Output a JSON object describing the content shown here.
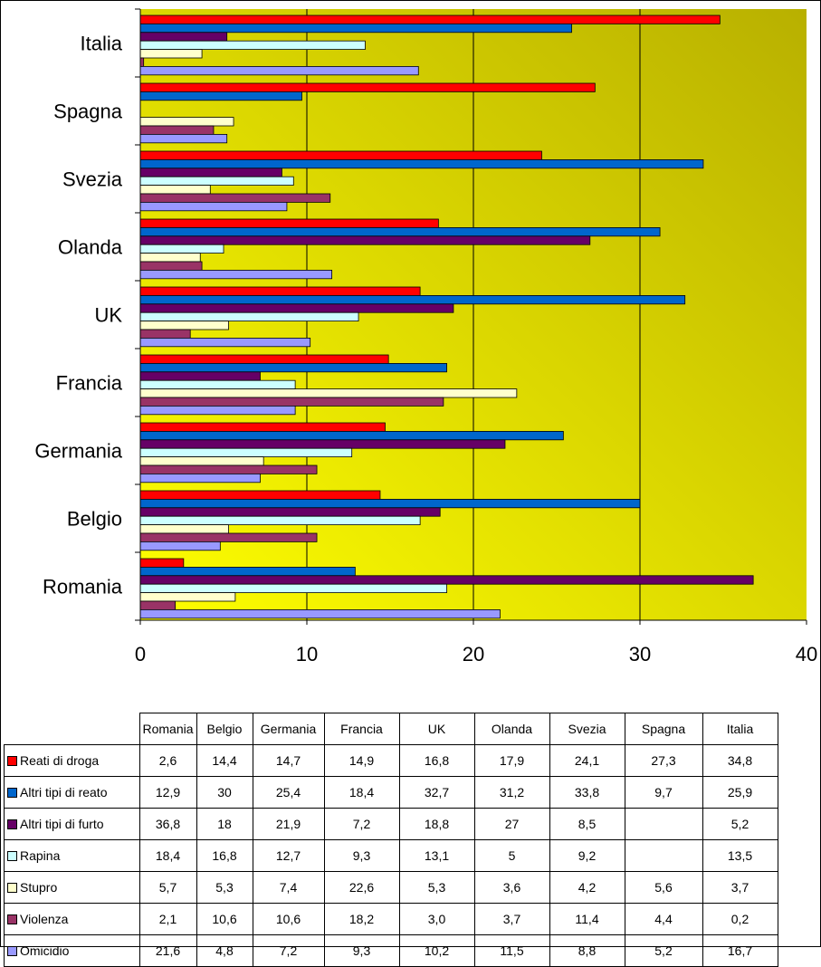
{
  "chart_data": {
    "type": "bar",
    "orientation": "horizontal",
    "categories": [
      "Romania",
      "Belgio",
      "Germania",
      "Francia",
      "UK",
      "Olanda",
      "Svezia",
      "Spagna",
      "Italia"
    ],
    "series": [
      {
        "name": "Reati di droga",
        "color": "#ff0000",
        "values": [
          2.6,
          14.4,
          14.7,
          14.9,
          16.8,
          17.9,
          24.1,
          27.3,
          34.8
        ],
        "display": [
          "2,6",
          "14,4",
          "14,7",
          "14,9",
          "16,8",
          "17,9",
          "24,1",
          "27,3",
          "34,8"
        ]
      },
      {
        "name": "Altri tipi di reato",
        "color": "#0066cc",
        "values": [
          12.9,
          30,
          25.4,
          18.4,
          32.7,
          31.2,
          33.8,
          9.7,
          25.9
        ],
        "display": [
          "12,9",
          "30",
          "25,4",
          "18,4",
          "32,7",
          "31,2",
          "33,8",
          "9,7",
          "25,9"
        ]
      },
      {
        "name": "Altri tipi di furto",
        "color": "#660066",
        "values": [
          36.8,
          18,
          21.9,
          7.2,
          18.8,
          27,
          8.5,
          null,
          5.2
        ],
        "display": [
          "36,8",
          "18",
          "21,9",
          "7,2",
          "18,8",
          "27",
          "8,5",
          "",
          "5,2"
        ]
      },
      {
        "name": "Rapina",
        "color": "#ccffff",
        "values": [
          18.4,
          16.8,
          12.7,
          9.3,
          13.1,
          5,
          9.2,
          null,
          13.5
        ],
        "display": [
          "18,4",
          "16,8",
          "12,7",
          "9,3",
          "13,1",
          "5",
          "9,2",
          "",
          "13,5"
        ]
      },
      {
        "name": "Stupro",
        "color": "#ffffcc",
        "values": [
          5.7,
          5.3,
          7.4,
          22.6,
          5.3,
          3.6,
          4.2,
          5.6,
          3.7
        ],
        "display": [
          "5,7",
          "5,3",
          "7,4",
          "22,6",
          "5,3",
          "3,6",
          "4,2",
          "5,6",
          "3,7"
        ]
      },
      {
        "name": "Violenza",
        "color": "#993366",
        "values": [
          2.1,
          10.6,
          10.6,
          18.2,
          3.0,
          3.7,
          11.4,
          4.4,
          0.2
        ],
        "display": [
          "2,1",
          "10,6",
          "10,6",
          "18,2",
          "3,0",
          "3,7",
          "11,4",
          "4,4",
          "0,2"
        ]
      },
      {
        "name": "Omicidio",
        "color": "#9999ff",
        "values": [
          21.6,
          4.8,
          7.2,
          9.3,
          10.2,
          11.5,
          8.8,
          5.2,
          16.7
        ],
        "display": [
          "21,6",
          "4,8",
          "7,2",
          "9,3",
          "10,2",
          "11,5",
          "8,8",
          "5,2",
          "16,7"
        ]
      }
    ],
    "xlim": [
      0,
      40
    ],
    "xticks": [
      "0",
      "10",
      "20",
      "30",
      "40"
    ],
    "grid": true,
    "legend": "data table below chart",
    "plot_background": "gradient from olive (top-right) to yellow (bottom-left)"
  }
}
